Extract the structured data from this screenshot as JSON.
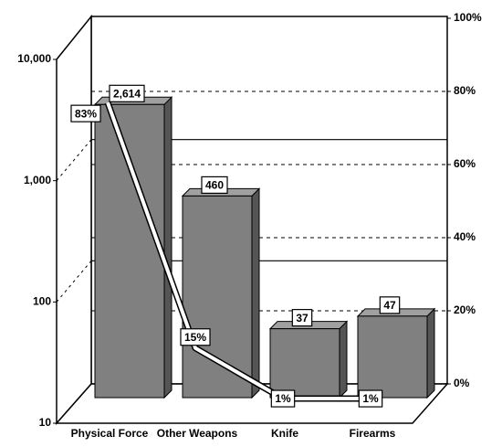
{
  "chart_data": {
    "type": "bar",
    "categories": [
      "Physical Force",
      "Other Weapons",
      "Knife",
      "Firearms"
    ],
    "series": [
      {
        "type": "bar",
        "values": [
          2614,
          460,
          37,
          47
        ],
        "value_labels": [
          "2,614",
          "460",
          "37",
          "47"
        ],
        "color": "#808080"
      },
      {
        "type": "line",
        "axis": "y2",
        "values": [
          83,
          15,
          1,
          1
        ],
        "value_labels": [
          "83%",
          "15%",
          "1%",
          "1%"
        ],
        "color": "#ffffff"
      }
    ],
    "yscale": "log",
    "ylim": [
      10,
      10000
    ],
    "yticks": [
      10,
      100,
      {
        "value": 1000,
        "label": "1,000"
      },
      {
        "value": 10000,
        "label": "10,000"
      }
    ],
    "y2lim": [
      0,
      100
    ],
    "y2ticks": [
      {
        "value": 0,
        "label": "0%"
      },
      {
        "value": 20,
        "label": "20%"
      },
      {
        "value": 40,
        "label": "40%"
      },
      {
        "value": 60,
        "label": "60%"
      },
      {
        "value": 80,
        "label": "80%"
      },
      {
        "value": 100,
        "label": "100%"
      }
    ],
    "grid": true
  }
}
